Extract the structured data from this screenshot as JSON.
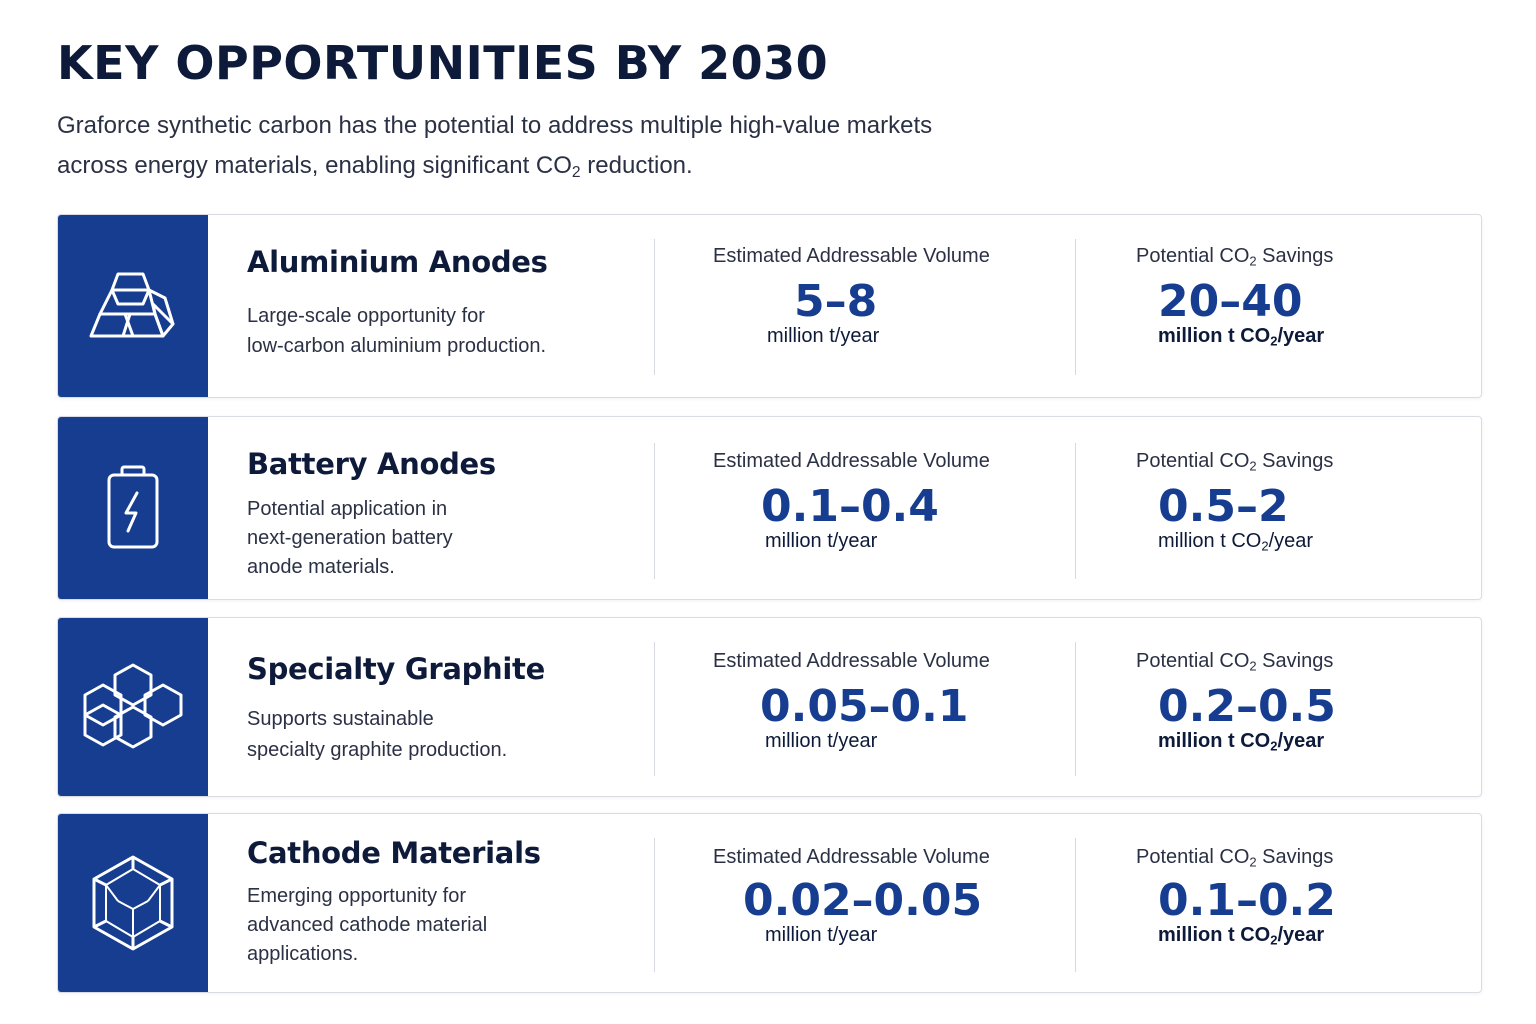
{
  "header": {
    "title": "KEY OPPORTUNITIES BY 2030",
    "intro_line1": "Graforce synthetic carbon has the potential to address multiple high-value markets",
    "intro_line2_pre": "across energy materials, enabling significant CO",
    "intro_line2_sub": "2",
    "intro_line2_post": " reduction."
  },
  "labels": {
    "volume_label": "Estimated Addressable Volume",
    "savings_label_pre": "Potential CO",
    "savings_label_sub": "2",
    "savings_label_post": " Savings",
    "volume_unit": "million t/year",
    "savings_unit_pre": "million t CO",
    "savings_unit_sub": "2",
    "savings_unit_post": "/year"
  },
  "colors": {
    "accent": "#163d8f",
    "heading": "#0e1a3a",
    "border": "#d9dce3"
  },
  "opportunities": [
    {
      "name": "Aluminium Anodes",
      "icon": "aluminium-ingots-icon",
      "desc_line1": "Large-scale opportunity for",
      "desc_line2": "low-carbon aluminium production.",
      "desc_line3": "",
      "volume": "5–8",
      "savings": "20–40"
    },
    {
      "name": "Battery Anodes",
      "icon": "battery-icon",
      "desc_line1": "Potential application in",
      "desc_line2": "next-generation battery",
      "desc_line3": "anode materials.",
      "volume": "0.1–0.4",
      "savings": "0.5–2"
    },
    {
      "name": "Specialty Graphite",
      "icon": "hexagon-cluster-icon",
      "desc_line1": "Supports sustainable",
      "desc_line2": "specialty graphite production.",
      "desc_line3": "",
      "volume": "0.05–0.1",
      "savings": "0.2–0.5"
    },
    {
      "name": "Cathode Materials",
      "icon": "crystal-icon",
      "desc_line1": "Emerging opportunity for",
      "desc_line2": "advanced cathode material",
      "desc_line3": "applications.",
      "volume": "0.02–0.05",
      "savings": "0.1–0.2"
    }
  ]
}
